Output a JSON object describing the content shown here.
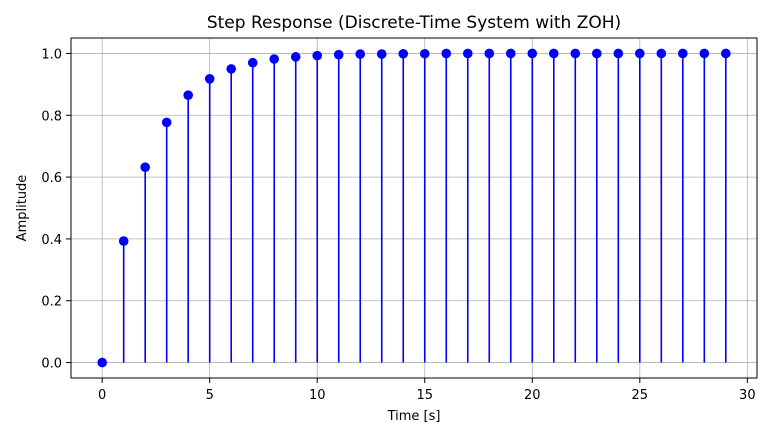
{
  "chart_data": {
    "type": "stem",
    "title": "Step Response (Discrete-Time System with ZOH)",
    "xlabel": "Time [s]",
    "ylabel": "Amplitude",
    "xlim": [
      -1.45,
      30.45
    ],
    "ylim": [
      -0.05,
      1.05
    ],
    "xticks": [
      0,
      5,
      10,
      15,
      20,
      25,
      30
    ],
    "yticks": [
      0.0,
      0.2,
      0.4,
      0.6,
      0.8,
      1.0
    ],
    "xtick_labels": [
      "0",
      "5",
      "10",
      "15",
      "20",
      "25",
      "30"
    ],
    "ytick_labels": [
      "0.0",
      "0.2",
      "0.4",
      "0.6",
      "0.8",
      "1.0"
    ],
    "grid": true,
    "series": [
      {
        "color": "#0000ff",
        "x": [
          0,
          1,
          2,
          3,
          4,
          5,
          6,
          7,
          8,
          9,
          10,
          11,
          12,
          13,
          14,
          15,
          16,
          17,
          18,
          19,
          20,
          21,
          22,
          23,
          24,
          25,
          26,
          27,
          28,
          29
        ],
        "y": [
          0.0,
          0.393,
          0.632,
          0.777,
          0.865,
          0.918,
          0.95,
          0.97,
          0.982,
          0.989,
          0.993,
          0.996,
          0.998,
          0.998,
          0.999,
          0.999,
          1.0,
          1.0,
          1.0,
          1.0,
          1.0,
          1.0,
          1.0,
          1.0,
          1.0,
          1.0,
          1.0,
          1.0,
          1.0,
          1.0
        ]
      }
    ]
  }
}
